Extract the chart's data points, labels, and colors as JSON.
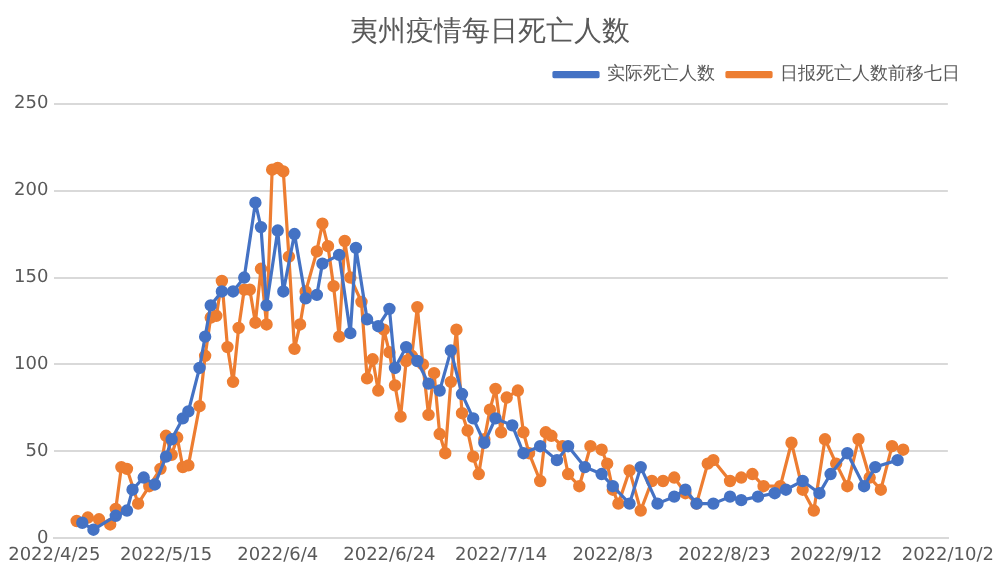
{
  "chart_data": {
    "type": "line",
    "title": "夷州疫情每日死亡人数",
    "ylim": [
      0,
      250
    ],
    "yticks": [
      0,
      50,
      100,
      150,
      200,
      250
    ],
    "xlim": [
      "2022-04-25",
      "2022-10-02"
    ],
    "xticks": [
      {
        "value": "2022-04-25",
        "label": "2022/4/25"
      },
      {
        "value": "2022-05-15",
        "label": "2022/5/15"
      },
      {
        "value": "2022-06-04",
        "label": "2022/6/4"
      },
      {
        "value": "2022-06-24",
        "label": "2022/6/24"
      },
      {
        "value": "2022-07-14",
        "label": "2022/7/14"
      },
      {
        "value": "2022-08-03",
        "label": "2022/8/3"
      },
      {
        "value": "2022-08-23",
        "label": "2022/8/23"
      },
      {
        "value": "2022-09-12",
        "label": "2022/9/12"
      },
      {
        "value": "2022-10-02",
        "label": "2022/10/2"
      }
    ],
    "grid": "y",
    "legend": "top right",
    "marker": "circle",
    "line_style": "solid",
    "series": [
      {
        "name": "实际死亡人数",
        "color": "#4472c4",
        "x": [
          "2022-04-30",
          "2022-05-02",
          "2022-05-06",
          "2022-05-08",
          "2022-05-09",
          "2022-05-11",
          "2022-05-13",
          "2022-05-15",
          "2022-05-16",
          "2022-05-18",
          "2022-05-19",
          "2022-05-21",
          "2022-05-22",
          "2022-05-23",
          "2022-05-25",
          "2022-05-27",
          "2022-05-29",
          "2022-05-31",
          "2022-06-01",
          "2022-06-02",
          "2022-06-04",
          "2022-06-05",
          "2022-06-07",
          "2022-06-09",
          "2022-06-11",
          "2022-06-12",
          "2022-06-15",
          "2022-06-17",
          "2022-06-18",
          "2022-06-20",
          "2022-06-22",
          "2022-06-24",
          "2022-06-25",
          "2022-06-27",
          "2022-06-29",
          "2022-07-01",
          "2022-07-03",
          "2022-07-05",
          "2022-07-07",
          "2022-07-09",
          "2022-07-11",
          "2022-07-13",
          "2022-07-16",
          "2022-07-18",
          "2022-07-21",
          "2022-07-24",
          "2022-07-26",
          "2022-07-29",
          "2022-08-01",
          "2022-08-03",
          "2022-08-06",
          "2022-08-08",
          "2022-08-11",
          "2022-08-14",
          "2022-08-16",
          "2022-08-18",
          "2022-08-21",
          "2022-08-24",
          "2022-08-26",
          "2022-08-29",
          "2022-09-01",
          "2022-09-03",
          "2022-09-06",
          "2022-09-09",
          "2022-09-11",
          "2022-09-14",
          "2022-09-17",
          "2022-09-19",
          "2022-09-23"
        ],
        "values": [
          9,
          5,
          13,
          16,
          28,
          35,
          31,
          47,
          57,
          69,
          73,
          98,
          116,
          134,
          142,
          142,
          150,
          193,
          179,
          134,
          177,
          142,
          175,
          138,
          140,
          158,
          163,
          118,
          167,
          126,
          122,
          132,
          98,
          110,
          102,
          89,
          85,
          108,
          83,
          69,
          55,
          69,
          65,
          49,
          53,
          45,
          53,
          41,
          37,
          30,
          20,
          41,
          20,
          24,
          28,
          20,
          20,
          24,
          22,
          24,
          26,
          28,
          33,
          26,
          37,
          49,
          30,
          41,
          45
        ]
      },
      {
        "name": "日报死亡人数前移七日",
        "color": "#ed7d31",
        "x": [
          "2022-04-29",
          "2022-05-01",
          "2022-05-03",
          "2022-05-05",
          "2022-05-06",
          "2022-05-07",
          "2022-05-08",
          "2022-05-10",
          "2022-05-12",
          "2022-05-14",
          "2022-05-15",
          "2022-05-16",
          "2022-05-17",
          "2022-05-18",
          "2022-05-19",
          "2022-05-21",
          "2022-05-22",
          "2022-05-23",
          "2022-05-24",
          "2022-05-25",
          "2022-05-26",
          "2022-05-27",
          "2022-05-28",
          "2022-05-29",
          "2022-05-30",
          "2022-05-31",
          "2022-06-01",
          "2022-06-02",
          "2022-06-03",
          "2022-06-04",
          "2022-06-05",
          "2022-06-06",
          "2022-06-07",
          "2022-06-08",
          "2022-06-09",
          "2022-06-11",
          "2022-06-12",
          "2022-06-13",
          "2022-06-14",
          "2022-06-15",
          "2022-06-16",
          "2022-06-17",
          "2022-06-19",
          "2022-06-20",
          "2022-06-21",
          "2022-06-22",
          "2022-06-23",
          "2022-06-24",
          "2022-06-25",
          "2022-06-26",
          "2022-06-27",
          "2022-06-28",
          "2022-06-29",
          "2022-06-30",
          "2022-07-01",
          "2022-07-02",
          "2022-07-03",
          "2022-07-04",
          "2022-07-05",
          "2022-07-06",
          "2022-07-07",
          "2022-07-08",
          "2022-07-09",
          "2022-07-10",
          "2022-07-11",
          "2022-07-12",
          "2022-07-13",
          "2022-07-14",
          "2022-07-15",
          "2022-07-17",
          "2022-07-18",
          "2022-07-19",
          "2022-07-21",
          "2022-07-22",
          "2022-07-23",
          "2022-07-25",
          "2022-07-26",
          "2022-07-28",
          "2022-07-30",
          "2022-08-01",
          "2022-08-02",
          "2022-08-03",
          "2022-08-04",
          "2022-08-06",
          "2022-08-08",
          "2022-08-10",
          "2022-08-12",
          "2022-08-14",
          "2022-08-16",
          "2022-08-18",
          "2022-08-20",
          "2022-08-21",
          "2022-08-24",
          "2022-08-26",
          "2022-08-28",
          "2022-08-30",
          "2022-09-02",
          "2022-09-04",
          "2022-09-06",
          "2022-09-08",
          "2022-09-10",
          "2022-09-12",
          "2022-09-14",
          "2022-09-16",
          "2022-09-18",
          "2022-09-20",
          "2022-09-22",
          "2022-09-24"
        ],
        "values": [
          10,
          12,
          11,
          8,
          17,
          41,
          40,
          20,
          30,
          40,
          59,
          48,
          58,
          41,
          42,
          76,
          105,
          127,
          128,
          148,
          110,
          90,
          121,
          143,
          143,
          124,
          155,
          123,
          212,
          213,
          211,
          162,
          109,
          123,
          142,
          165,
          181,
          168,
          145,
          116,
          171,
          150,
          136,
          92,
          103,
          85,
          120,
          107,
          88,
          70,
          102,
          105,
          133,
          100,
          71,
          95,
          60,
          49,
          90,
          120,
          72,
          62,
          47,
          37,
          57,
          74,
          86,
          61,
          81,
          85,
          61,
          49,
          33,
          61,
          59,
          53,
          37,
          30,
          53,
          51,
          43,
          28,
          20,
          39,
          16,
          33,
          33,
          35,
          26,
          20,
          43,
          45,
          33,
          35,
          37,
          30,
          30,
          55,
          28,
          16,
          57,
          43,
          30,
          57,
          35,
          28,
          53,
          51
        ]
      }
    ]
  }
}
